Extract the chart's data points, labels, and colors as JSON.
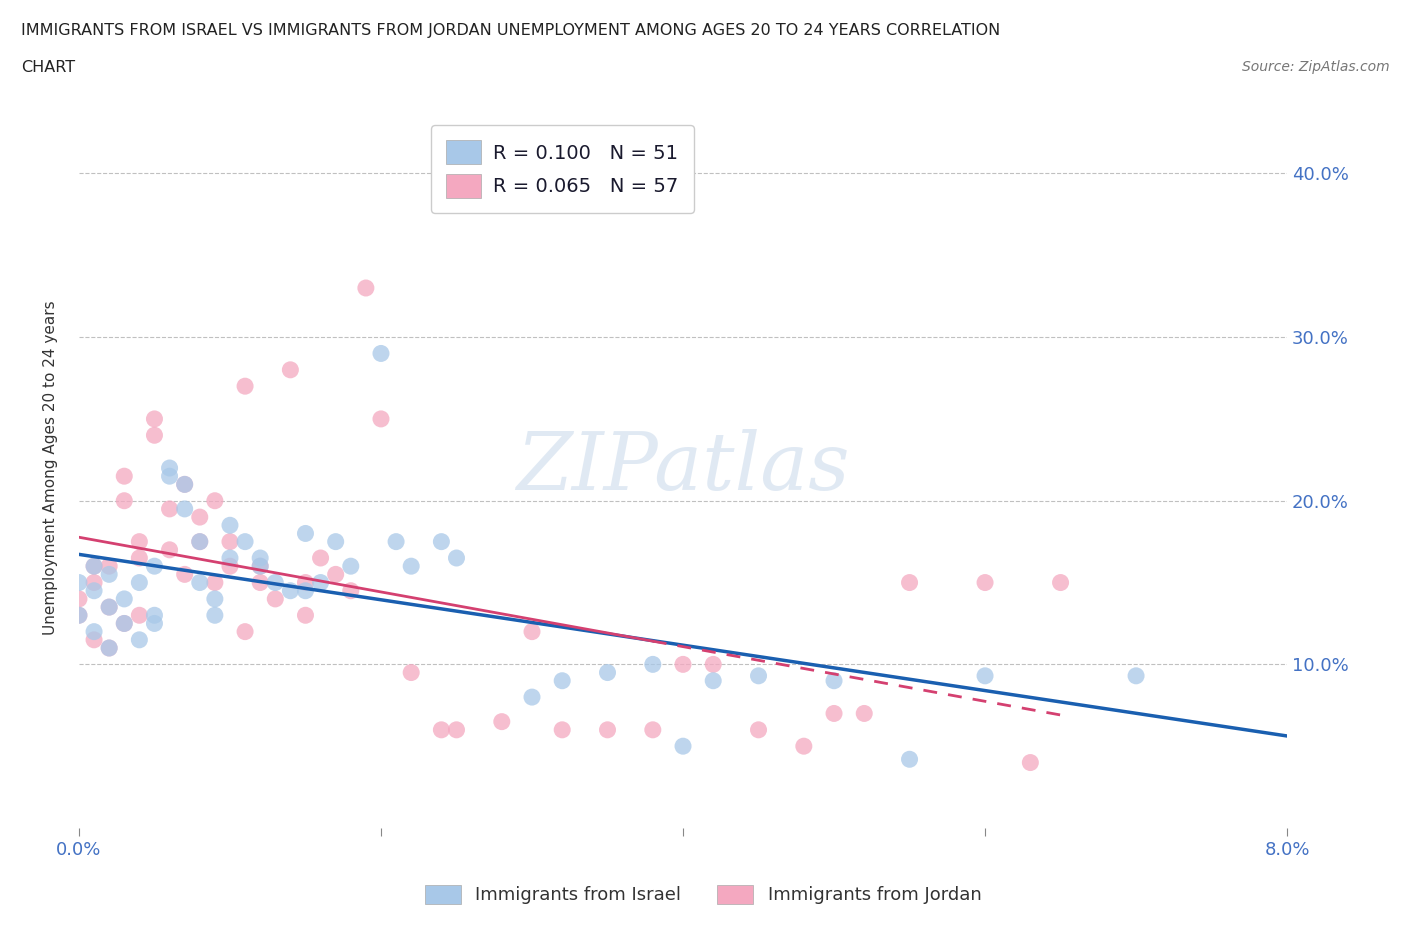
{
  "title_line1": "IMMIGRANTS FROM ISRAEL VS IMMIGRANTS FROM JORDAN UNEMPLOYMENT AMONG AGES 20 TO 24 YEARS CORRELATION",
  "title_line2": "CHART",
  "source": "Source: ZipAtlas.com",
  "ylabel": "Unemployment Among Ages 20 to 24 years",
  "xlim": [
    0.0,
    0.08
  ],
  "ylim": [
    0.0,
    0.44
  ],
  "xticks": [
    0.0,
    0.02,
    0.04,
    0.06,
    0.08
  ],
  "ytick_labels": [
    "10.0%",
    "20.0%",
    "30.0%",
    "40.0%"
  ],
  "yticks": [
    0.1,
    0.2,
    0.3,
    0.4
  ],
  "legend_R_israel": "0.100",
  "legend_N_israel": "51",
  "legend_R_jordan": "0.065",
  "legend_N_jordan": "57",
  "color_israel": "#a8c8e8",
  "color_jordan": "#f4a8c0",
  "color_israel_line": "#1a5fb0",
  "color_jordan_line": "#d44070",
  "watermark": "ZIPatlas",
  "israel_scatter_x": [
    0.0,
    0.0,
    0.001,
    0.001,
    0.001,
    0.002,
    0.002,
    0.002,
    0.003,
    0.003,
    0.004,
    0.004,
    0.005,
    0.005,
    0.005,
    0.006,
    0.006,
    0.007,
    0.007,
    0.008,
    0.008,
    0.009,
    0.009,
    0.01,
    0.01,
    0.011,
    0.012,
    0.012,
    0.013,
    0.014,
    0.015,
    0.015,
    0.016,
    0.017,
    0.018,
    0.02,
    0.021,
    0.022,
    0.024,
    0.025,
    0.03,
    0.032,
    0.035,
    0.038,
    0.04,
    0.042,
    0.045,
    0.05,
    0.055,
    0.06,
    0.07
  ],
  "israel_scatter_y": [
    0.13,
    0.15,
    0.12,
    0.145,
    0.16,
    0.11,
    0.135,
    0.155,
    0.125,
    0.14,
    0.115,
    0.15,
    0.13,
    0.125,
    0.16,
    0.215,
    0.22,
    0.21,
    0.195,
    0.175,
    0.15,
    0.14,
    0.13,
    0.185,
    0.165,
    0.175,
    0.165,
    0.16,
    0.15,
    0.145,
    0.18,
    0.145,
    0.15,
    0.175,
    0.16,
    0.29,
    0.175,
    0.16,
    0.175,
    0.165,
    0.08,
    0.09,
    0.095,
    0.1,
    0.05,
    0.09,
    0.093,
    0.09,
    0.042,
    0.093,
    0.093
  ],
  "jordan_scatter_x": [
    0.0,
    0.0,
    0.001,
    0.001,
    0.001,
    0.002,
    0.002,
    0.002,
    0.003,
    0.003,
    0.003,
    0.004,
    0.004,
    0.004,
    0.005,
    0.005,
    0.006,
    0.006,
    0.007,
    0.007,
    0.008,
    0.008,
    0.009,
    0.009,
    0.01,
    0.01,
    0.011,
    0.011,
    0.012,
    0.012,
    0.013,
    0.014,
    0.015,
    0.015,
    0.016,
    0.017,
    0.018,
    0.019,
    0.02,
    0.022,
    0.024,
    0.025,
    0.028,
    0.03,
    0.032,
    0.035,
    0.038,
    0.04,
    0.042,
    0.045,
    0.048,
    0.05,
    0.052,
    0.055,
    0.06,
    0.063,
    0.065
  ],
  "jordan_scatter_y": [
    0.13,
    0.14,
    0.115,
    0.15,
    0.16,
    0.135,
    0.16,
    0.11,
    0.2,
    0.215,
    0.125,
    0.165,
    0.175,
    0.13,
    0.24,
    0.25,
    0.17,
    0.195,
    0.21,
    0.155,
    0.175,
    0.19,
    0.2,
    0.15,
    0.175,
    0.16,
    0.27,
    0.12,
    0.15,
    0.16,
    0.14,
    0.28,
    0.15,
    0.13,
    0.165,
    0.155,
    0.145,
    0.33,
    0.25,
    0.095,
    0.06,
    0.06,
    0.065,
    0.12,
    0.06,
    0.06,
    0.06,
    0.1,
    0.1,
    0.06,
    0.05,
    0.07,
    0.07,
    0.15,
    0.15,
    0.04,
    0.15
  ]
}
